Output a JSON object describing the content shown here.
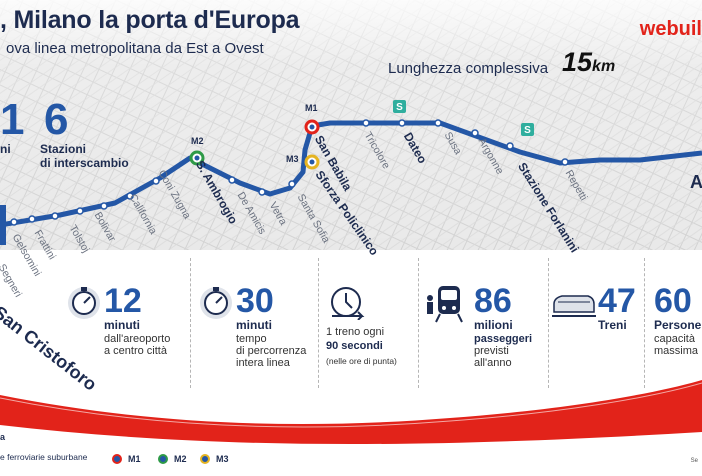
{
  "header": {
    "title": ", Milano la porta d'Europa",
    "subtitle": "ova linea metropolitana da Est a Ovest",
    "logo_text": "webuil",
    "length_label": "Lunghezza complessiva",
    "length_value": "15",
    "length_unit": "km"
  },
  "top_stats": [
    {
      "number": "1",
      "label": "ni"
    },
    {
      "number": "6",
      "label_line1": "Stazioni",
      "label_line2": "di interscambio"
    }
  ],
  "stations": [
    {
      "name": "San Cristoforo",
      "style": "xl"
    },
    {
      "name": "Segneri",
      "style": "minor"
    },
    {
      "name": "Gelsomini",
      "style": "minor"
    },
    {
      "name": "Frattini",
      "style": "minor"
    },
    {
      "name": "Tolstoj",
      "style": "minor"
    },
    {
      "name": "Bolivar",
      "style": "minor"
    },
    {
      "name": "California",
      "style": "minor"
    },
    {
      "name": "Coni Zugna",
      "style": "minor"
    },
    {
      "name": "S. Ambrogio",
      "style": "major"
    },
    {
      "name": "De Amicis",
      "style": "minor"
    },
    {
      "name": "Vetra",
      "style": "minor"
    },
    {
      "name": "Santa Sofia",
      "style": "minor"
    },
    {
      "name": "Sforza Policlinico",
      "style": "major"
    },
    {
      "name": "San Babila",
      "style": "major"
    },
    {
      "name": "Tricolore",
      "style": "minor"
    },
    {
      "name": "Dateo",
      "style": "major"
    },
    {
      "name": "Susa",
      "style": "minor"
    },
    {
      "name": "Argonne",
      "style": "minor"
    },
    {
      "name": "Stazione Forlanini",
      "style": "major"
    },
    {
      "name": "Repetti",
      "style": "minor"
    }
  ],
  "interchange_tags": {
    "m1": "M1",
    "m2": "M2",
    "m3": "M3"
  },
  "right_edge_label": "A",
  "stats": [
    {
      "number": "12",
      "unit": "minuti",
      "desc1": "dall'areoporto",
      "desc2": "a centro città",
      "icon": "stopwatch-icon"
    },
    {
      "number": "30",
      "unit": "minuti",
      "desc1": "tempo",
      "desc2": "di percorrenza",
      "desc3": "intera linea",
      "icon": "stopwatch-icon"
    },
    {
      "line1": "1 treno ogni",
      "line2": "90 secondi",
      "note": "(nelle ore di punta)",
      "icon": "clock-arrow-icon"
    },
    {
      "number": "86",
      "unit": "milioni",
      "desc1": "passeggeri",
      "desc2": "previsti",
      "desc3": "all'anno",
      "icon": "passengers-train-icon"
    },
    {
      "number": "47",
      "unit": "Treni",
      "icon": "train-icon"
    },
    {
      "number": "60",
      "unit": "Persone",
      "desc1": "capacità",
      "desc2": "massima",
      "icon": "people-icon"
    }
  ],
  "legend": {
    "title": "a",
    "suburban_label": "e ferroviarie suburbane",
    "m1": "M1",
    "m2": "M2",
    "m3": "M3",
    "source": "Se"
  },
  "colors": {
    "line": "#2457a6",
    "accent_red": "#e2231a",
    "text_dark": "#1d2b4f",
    "m1": "#e2231a",
    "m2": "#2e9a47",
    "m3": "#e5b422",
    "suburban": "#2fae9e"
  }
}
